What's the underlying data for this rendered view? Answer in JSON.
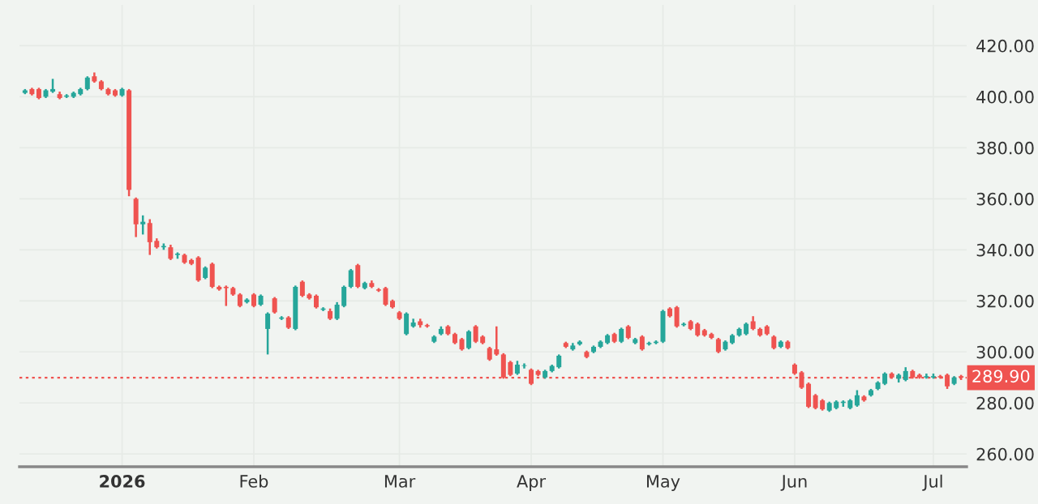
{
  "chart_data": {
    "type": "candlestick",
    "categories": [
      null,
      null,
      null,
      null,
      null,
      null,
      null,
      null,
      null,
      null,
      null,
      null,
      null,
      null,
      "2026",
      null,
      null,
      null,
      null,
      null,
      null,
      null,
      null,
      null,
      null,
      null,
      null,
      null,
      null,
      null,
      null,
      null,
      null,
      "Feb",
      null,
      null,
      null,
      null,
      null,
      null,
      null,
      null,
      null,
      null,
      null,
      null,
      null,
      null,
      null,
      null,
      null,
      null,
      null,
      null,
      "Mar",
      null,
      null,
      null,
      null,
      null,
      null,
      null,
      null,
      null,
      null,
      null,
      null,
      null,
      null,
      null,
      null,
      null,
      null,
      "Apr",
      null,
      null,
      null,
      null,
      null,
      null,
      null,
      null,
      null,
      null,
      null,
      null,
      null,
      null,
      null,
      null,
      null,
      null,
      "May",
      null,
      null,
      null,
      null,
      null,
      null,
      null,
      null,
      null,
      null,
      null,
      null,
      null,
      null,
      null,
      null,
      null,
      null,
      "Jun",
      null,
      null,
      null,
      null,
      null,
      null,
      null,
      null,
      null,
      null,
      null,
      null,
      null,
      null,
      null,
      null,
      null,
      null,
      null,
      "Jul",
      null,
      null,
      null,
      null
    ],
    "ohlc": [
      [
        401.5,
        403,
        401,
        402.5
      ],
      [
        403,
        403.5,
        400.5,
        401
      ],
      [
        403,
        403.5,
        399,
        399.5
      ],
      [
        400,
        403,
        399.5,
        402.5
      ],
      [
        402,
        407,
        401.5,
        403
      ],
      [
        401,
        402,
        399,
        399.5
      ],
      [
        400,
        401,
        399.5,
        400.5
      ],
      [
        400,
        402,
        399.5,
        401.5
      ],
      [
        401,
        403.5,
        400.5,
        403
      ],
      [
        403,
        408,
        402.5,
        407.5
      ],
      [
        408,
        409.5,
        405.5,
        406
      ],
      [
        406,
        406.5,
        402.5,
        403
      ],
      [
        403,
        403.5,
        400.5,
        401
      ],
      [
        402.5,
        403,
        400,
        400.5
      ],
      [
        400.5,
        403.5,
        400,
        403
      ],
      [
        402.5,
        403,
        361,
        363.5
      ],
      [
        360,
        360.5,
        345,
        350
      ],
      [
        350,
        353.5,
        346,
        351
      ],
      [
        350.5,
        352,
        338,
        343
      ],
      [
        343.5,
        344.5,
        340.5,
        341
      ],
      [
        341,
        342.5,
        340,
        341.5
      ],
      [
        341,
        342,
        336,
        336.5
      ],
      [
        338,
        339,
        336.5,
        338.5
      ],
      [
        338,
        338.5,
        334.5,
        335
      ],
      [
        336,
        336.5,
        334,
        334.5
      ],
      [
        337,
        337.5,
        327.5,
        328
      ],
      [
        329,
        333.5,
        328.5,
        333
      ],
      [
        334.5,
        335,
        325,
        325.5
      ],
      [
        325.5,
        326,
        324,
        324.5
      ],
      [
        325.5,
        326,
        318,
        325
      ],
      [
        325,
        325.5,
        322,
        322.5
      ],
      [
        322.5,
        323,
        317.5,
        318
      ],
      [
        319.5,
        321,
        319,
        320.5
      ],
      [
        322.5,
        323,
        317.5,
        318
      ],
      [
        318.5,
        322.5,
        318,
        322
      ],
      [
        309,
        315.5,
        299,
        315
      ],
      [
        321,
        321.5,
        315,
        315.5
      ],
      [
        313,
        314,
        312.5,
        313.5
      ],
      [
        313.5,
        314,
        309,
        309.5
      ],
      [
        309,
        326,
        308.5,
        325.5
      ],
      [
        327.5,
        328,
        321.5,
        322
      ],
      [
        322.5,
        323,
        320.5,
        321
      ],
      [
        322,
        322.5,
        317,
        317.5
      ],
      [
        316.5,
        317.5,
        316,
        317
      ],
      [
        316,
        317,
        312.5,
        313
      ],
      [
        313,
        319.5,
        312.5,
        318.5
      ],
      [
        318,
        326,
        317.5,
        325.5
      ],
      [
        325.5,
        332.5,
        325,
        332
      ],
      [
        334,
        334.5,
        325,
        325.5
      ],
      [
        325,
        327.5,
        324.5,
        327
      ],
      [
        327,
        328,
        325,
        325.5
      ],
      [
        324.5,
        325,
        323.5,
        324
      ],
      [
        325,
        325.5,
        318,
        318.5
      ],
      [
        320,
        320.5,
        317,
        317.5
      ],
      [
        315.5,
        316,
        312.5,
        313
      ],
      [
        307,
        315.5,
        306.5,
        315
      ],
      [
        310,
        313,
        309.5,
        311.5
      ],
      [
        312,
        313,
        309.5,
        310.5
      ],
      [
        310.5,
        311,
        309.5,
        310
      ],
      [
        304,
        306.5,
        303.5,
        306
      ],
      [
        307,
        310,
        306.5,
        309
      ],
      [
        310,
        310.5,
        306.5,
        307
      ],
      [
        307,
        307.5,
        303,
        303.5
      ],
      [
        305,
        305.5,
        300.5,
        301
      ],
      [
        301.5,
        308.5,
        301,
        308
      ],
      [
        310,
        310.5,
        303.5,
        304
      ],
      [
        306,
        306.5,
        303,
        303.5
      ],
      [
        301.5,
        302,
        296.5,
        297
      ],
      [
        301,
        310,
        298.5,
        299
      ],
      [
        299,
        299.5,
        289.5,
        290
      ],
      [
        296,
        296.5,
        290.5,
        291
      ],
      [
        291.5,
        296.5,
        291,
        295
      ],
      [
        294.5,
        295.5,
        293.5,
        294.5
      ],
      [
        293,
        293.5,
        287,
        287.5
      ],
      [
        292.5,
        293,
        290.5,
        291
      ],
      [
        290,
        293,
        289.5,
        292.5
      ],
      [
        292.5,
        295,
        292,
        294.5
      ],
      [
        294,
        299,
        293.5,
        298.5
      ],
      [
        303.5,
        304,
        301.5,
        302
      ],
      [
        301,
        303.5,
        300.5,
        302.5
      ],
      [
        303,
        304.5,
        302.5,
        304
      ],
      [
        300,
        300.5,
        297.5,
        298
      ],
      [
        300,
        302.5,
        299.5,
        302
      ],
      [
        302,
        304.5,
        301.5,
        304
      ],
      [
        303.5,
        307,
        303,
        306.5
      ],
      [
        307,
        307.5,
        303.5,
        304
      ],
      [
        304,
        309.5,
        303.5,
        309
      ],
      [
        310,
        310.5,
        305,
        305.5
      ],
      [
        303.5,
        305.5,
        303,
        305
      ],
      [
        306,
        306.5,
        300.5,
        301
      ],
      [
        303,
        304,
        302.5,
        303.5
      ],
      [
        303.5,
        304.5,
        303,
        304
      ],
      [
        304,
        316.5,
        303.5,
        316
      ],
      [
        317,
        317.5,
        313.5,
        314
      ],
      [
        317.5,
        318,
        309.5,
        310
      ],
      [
        310.5,
        311.5,
        310,
        311
      ],
      [
        312,
        312.5,
        308.5,
        309
      ],
      [
        311,
        311.5,
        306,
        306.5
      ],
      [
        308.5,
        309,
        306,
        306.5
      ],
      [
        307,
        307.5,
        305,
        305.5
      ],
      [
        305,
        305.5,
        299.5,
        300
      ],
      [
        301,
        304.5,
        300.5,
        304
      ],
      [
        303.5,
        307,
        303,
        306.5
      ],
      [
        306.5,
        309.5,
        306,
        309
      ],
      [
        307,
        311.5,
        306.5,
        311
      ],
      [
        312,
        314,
        308.5,
        309
      ],
      [
        309,
        309.5,
        306,
        306.5
      ],
      [
        310,
        310.5,
        306.5,
        307
      ],
      [
        306,
        306.5,
        301,
        301.5
      ],
      [
        302,
        304.5,
        301.5,
        304
      ],
      [
        304,
        304.5,
        301,
        301.5
      ],
      [
        295,
        295.5,
        291,
        291.5
      ],
      [
        292,
        292.5,
        285.5,
        286
      ],
      [
        287.5,
        288,
        278,
        278.5
      ],
      [
        283,
        283.5,
        277.5,
        278
      ],
      [
        281,
        281.5,
        277,
        277.5
      ],
      [
        277,
        280.5,
        276.5,
        280
      ],
      [
        278,
        281,
        277.5,
        280.5
      ],
      [
        280,
        281,
        278.5,
        280.5
      ],
      [
        278,
        281.5,
        277.5,
        281
      ],
      [
        279,
        285,
        278.5,
        283
      ],
      [
        282.5,
        283,
        280.5,
        281
      ],
      [
        283,
        285.5,
        282.5,
        285
      ],
      [
        285.5,
        288.5,
        285,
        288
      ],
      [
        287.5,
        292,
        287,
        291.5
      ],
      [
        291.5,
        292,
        289.5,
        290
      ],
      [
        289.5,
        291.5,
        288,
        291
      ],
      [
        289,
        294,
        288.5,
        292.5
      ],
      [
        292.5,
        293,
        289.5,
        290
      ],
      [
        291,
        291.5,
        289.5,
        290
      ],
      [
        290,
        291.5,
        289.5,
        290.5
      ],
      [
        290,
        291.5,
        289.5,
        290.5
      ],
      [
        290.5,
        291,
        289.5,
        290
      ],
      [
        291,
        291.5,
        285.5,
        286.5
      ],
      [
        287.5,
        290.5,
        287,
        290
      ],
      [
        290.5,
        291,
        289,
        289.9
      ]
    ],
    "colors": [
      "#26a69a",
      "#ef5350",
      "#ef5350",
      "#26a69a",
      "#26a69a",
      "#ef5350",
      "#26a69a",
      "#26a69a",
      "#26a69a",
      "#26a69a",
      "#ef5350",
      "#ef5350",
      "#ef5350",
      "#ef5350",
      "#26a69a",
      "#ef5350",
      "#ef5350",
      "#26a69a",
      "#ef5350",
      "#ef5350",
      "#26a69a",
      "#ef5350",
      "#26a69a",
      "#ef5350",
      "#ef5350",
      "#ef5350",
      "#26a69a",
      "#ef5350",
      "#ef5350",
      "#ef5350",
      "#ef5350",
      "#ef5350",
      "#26a69a",
      "#ef5350",
      "#26a69a",
      "#26a69a",
      "#ef5350",
      "#26a69a",
      "#ef5350",
      "#26a69a",
      "#ef5350",
      "#ef5350",
      "#ef5350",
      "#26a69a",
      "#ef5350",
      "#26a69a",
      "#26a69a",
      "#26a69a",
      "#ef5350",
      "#26a69a",
      "#ef5350",
      "#ef5350",
      "#ef5350",
      "#ef5350",
      "#ef5350",
      "#26a69a",
      "#26a69a",
      "#ef5350",
      "#ef5350",
      "#26a69a",
      "#26a69a",
      "#ef5350",
      "#ef5350",
      "#ef5350",
      "#26a69a",
      "#ef5350",
      "#ef5350",
      "#ef5350",
      "#ef5350",
      "#ef5350",
      "#ef5350",
      "#26a69a",
      "#26a69a",
      "#ef5350",
      "#ef5350",
      "#26a69a",
      "#26a69a",
      "#26a69a",
      "#ef5350",
      "#26a69a",
      "#26a69a",
      "#ef5350",
      "#26a69a",
      "#26a69a",
      "#26a69a",
      "#ef5350",
      "#26a69a",
      "#ef5350",
      "#26a69a",
      "#ef5350",
      "#26a69a",
      "#26a69a",
      "#26a69a",
      "#ef5350",
      "#ef5350",
      "#26a69a",
      "#ef5350",
      "#ef5350",
      "#ef5350",
      "#ef5350",
      "#ef5350",
      "#26a69a",
      "#26a69a",
      "#26a69a",
      "#26a69a",
      "#ef5350",
      "#ef5350",
      "#ef5350",
      "#ef5350",
      "#26a69a",
      "#ef5350",
      "#ef5350",
      "#ef5350",
      "#ef5350",
      "#ef5350",
      "#ef5350",
      "#26a69a",
      "#26a69a",
      "#26a69a",
      "#26a69a",
      "#26a69a",
      "#ef5350",
      "#26a69a",
      "#26a69a",
      "#26a69a",
      "#ef5350",
      "#26a69a",
      "#26a69a",
      "#ef5350",
      "#ef5350",
      "#26a69a",
      "#26a69a",
      "#ef5350",
      "#ef5350",
      "#26a69a",
      "#ef5350"
    ],
    "ylim": [
      255,
      436
    ],
    "yticks": [
      {
        "value": 260,
        "label": "260.00"
      },
      {
        "value": 280,
        "label": "280.00"
      },
      {
        "value": 300,
        "label": "300.00"
      },
      {
        "value": 320,
        "label": "320.00"
      },
      {
        "value": 340,
        "label": "340.00"
      },
      {
        "value": 360,
        "label": "360.00"
      },
      {
        "value": 380,
        "label": "380.00"
      },
      {
        "value": 400,
        "label": "400.00"
      },
      {
        "value": 420,
        "label": "420.00"
      }
    ],
    "ref_lines": [
      {
        "axis": "y",
        "value": 289.9,
        "label": "289.90",
        "color": "#ef5350",
        "line_style": "dotted"
      }
    ],
    "grid": true
  }
}
